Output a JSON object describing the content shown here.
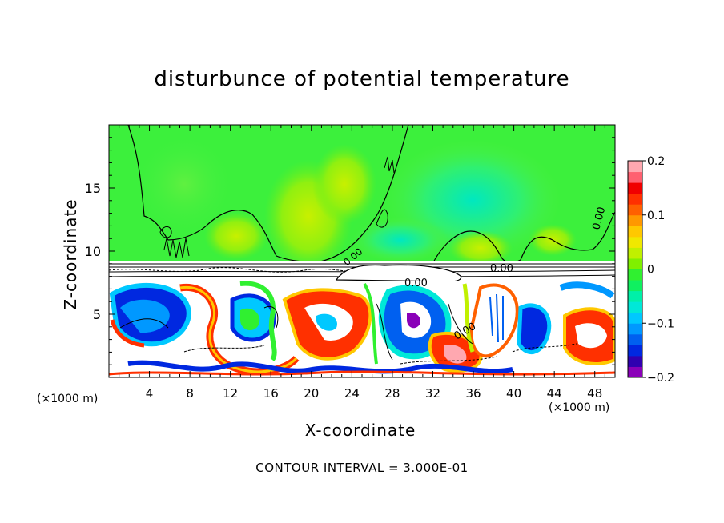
{
  "chart_data": {
    "type": "heatmap",
    "title": "disturbunce of potential temperature",
    "xlabel": "X-coordinate",
    "ylabel": "Z-coordinate",
    "x_unit": "(×1000 m)",
    "z_unit": "(×1000 m)",
    "xlim": [
      0,
      50
    ],
    "ylim": [
      0,
      20
    ],
    "x_ticks": [
      4,
      8,
      12,
      16,
      20,
      24,
      28,
      32,
      36,
      40,
      44,
      48
    ],
    "y_ticks": [
      5,
      10,
      15
    ],
    "colorbar": {
      "range": [
        -0.2,
        0.2
      ],
      "ticks": [
        0.2,
        0.1,
        0,
        -0.1,
        -0.2
      ],
      "tick_labels": [
        "0.2",
        "0.1",
        "0",
        "−0.1",
        "−0.2"
      ],
      "colors": [
        "#8a00b8",
        "#3000b0",
        "#0028e0",
        "#0060f0",
        "#0098ff",
        "#00c8ff",
        "#00e8d8",
        "#00f0a8",
        "#10f060",
        "#30f030",
        "#80f000",
        "#c0f000",
        "#f0e800",
        "#ffc800",
        "#ff9800",
        "#ff6000",
        "#ff3000",
        "#f00000",
        "#ff6070",
        "#ffa8b0"
      ]
    },
    "contour_labels": [
      "0.00",
      "0.00",
      "0.00",
      "0.00",
      "0.00"
    ],
    "footer": "CONTOUR INTERVAL = 3.000E-01"
  }
}
